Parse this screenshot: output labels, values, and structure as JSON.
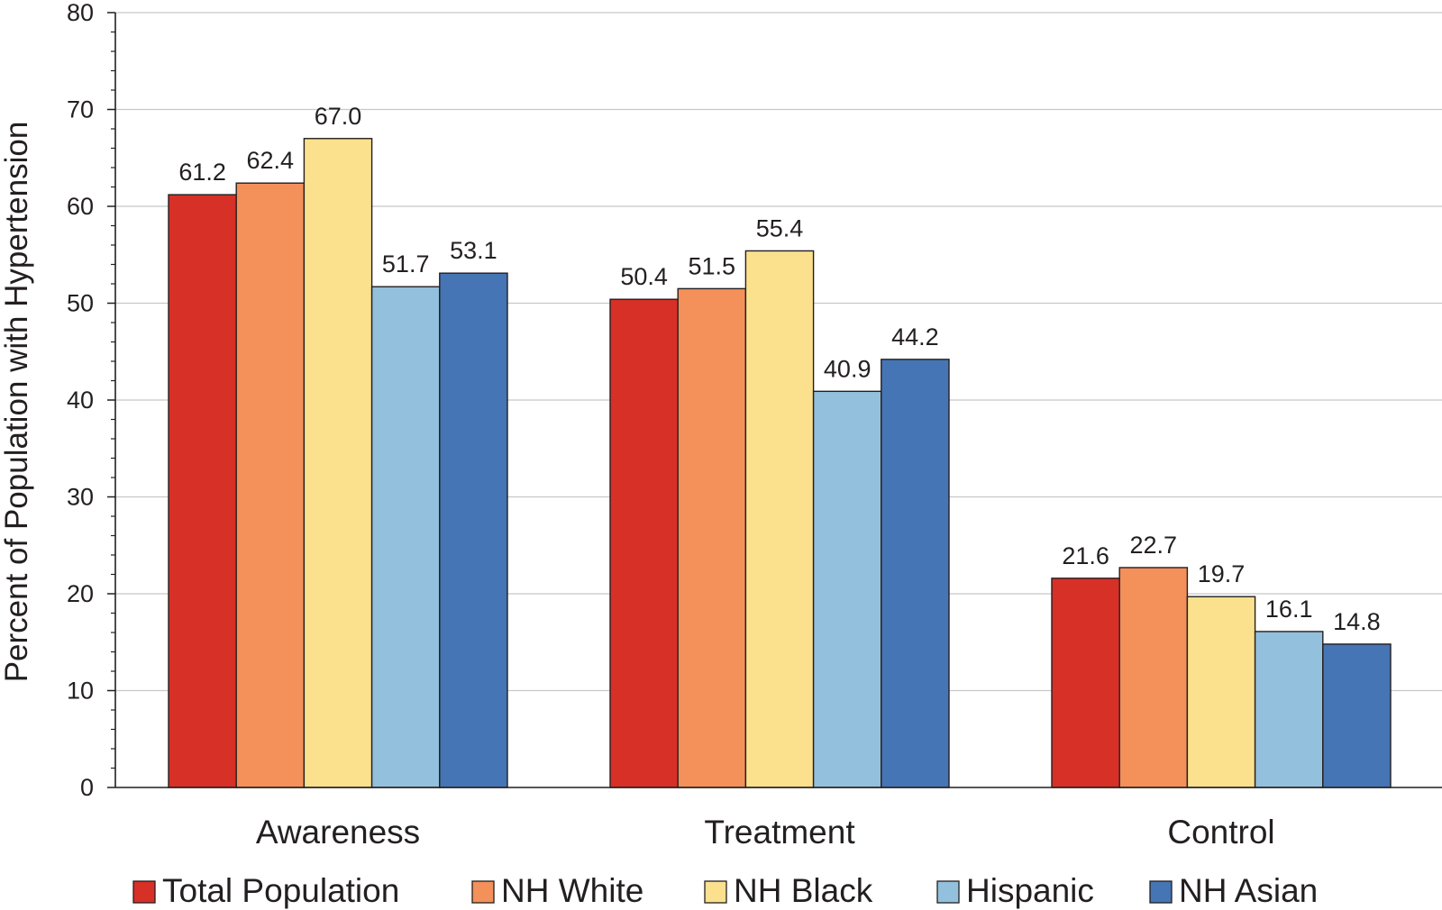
{
  "chart_data": {
    "type": "bar",
    "title": "",
    "xlabel": "",
    "ylabel": "Percent of Population with Hypertension",
    "ylim": [
      0,
      80
    ],
    "yticks": [
      0,
      10,
      20,
      30,
      40,
      50,
      60,
      70,
      80
    ],
    "grid": true,
    "legend_position": "bottom",
    "categories": [
      "Awareness",
      "Treatment",
      "Control"
    ],
    "series": [
      {
        "name": "Total Population",
        "color": "#d73027",
        "values": [
          61.2,
          50.4,
          21.6
        ],
        "labels": [
          "61.2",
          "50.4",
          "21.6"
        ]
      },
      {
        "name": "NH White",
        "color": "#f4905a",
        "values": [
          62.4,
          51.5,
          22.7
        ],
        "labels": [
          "62.4",
          "51.5",
          "22.7"
        ]
      },
      {
        "name": "NH Black",
        "color": "#fbe08e",
        "values": [
          67.0,
          55.4,
          19.7
        ],
        "labels": [
          "67.0",
          "55.4",
          "19.7"
        ]
      },
      {
        "name": "Hispanic",
        "color": "#93c0dc",
        "values": [
          51.7,
          40.9,
          16.1
        ],
        "labels": [
          "51.7",
          "40.9",
          "16.1"
        ]
      },
      {
        "name": "NH Asian",
        "color": "#4575b4",
        "values": [
          53.1,
          44.2,
          14.8
        ],
        "labels": [
          "53.1",
          "44.2",
          "14.8"
        ]
      }
    ]
  }
}
